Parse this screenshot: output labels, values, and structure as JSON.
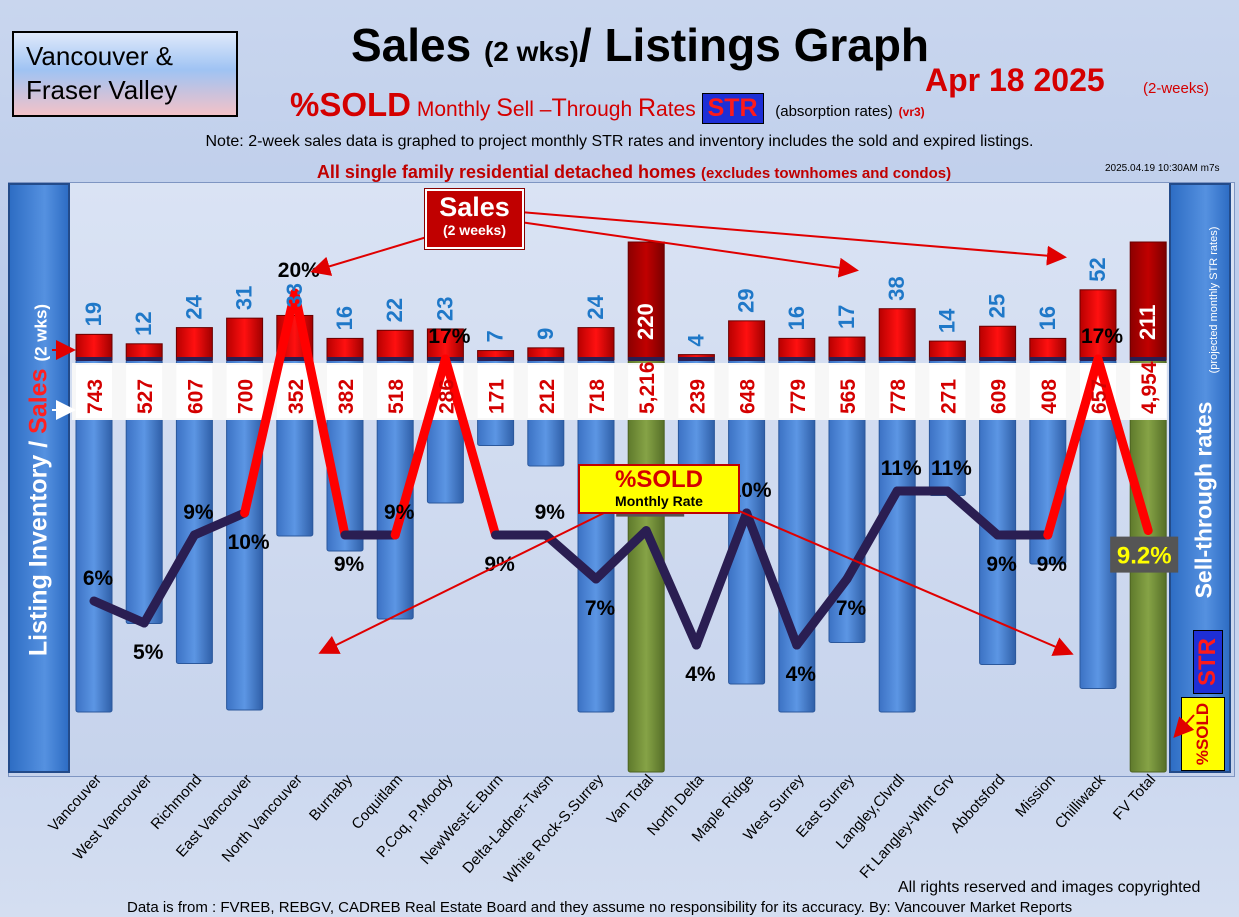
{
  "header": {
    "region": "Vancouver & Fraser Valley",
    "title_main": "Sales",
    "title_paren": "(2 wks)",
    "title_rest": "/ Listings Graph",
    "date": "Apr 18  2025",
    "date_suffix": "(2-weeks)",
    "subtitle_pct": "%SOLD",
    "subtitle_w1": "Monthly",
    "subtitle_S": "S",
    "subtitle_w2": "ell –",
    "subtitle_T": "T",
    "subtitle_w3": "hrough",
    "subtitle_R": "R",
    "subtitle_w4": "ates",
    "subtitle_str": "STR",
    "subtitle_tail": "(absorption rates)",
    "subtitle_ver": "(vr3)",
    "note": "Note: 2-week sales data is graphed to project monthly STR rates and inventory includes the sold and expired listings.",
    "stamp": "2025.04.19 10:30AM m7s",
    "detached": "All single family residential detached homes",
    "detached_paren": "(excludes townhomes and condos)"
  },
  "axes": {
    "left_a": "Listing Inventory /",
    "left_b": "Sales",
    "left_c": "(2  wks)",
    "right": "Sell-through rates",
    "right_sub": "(projected monthly STR rates)",
    "str_tag": "STR",
    "pct_sold_tag": "%SOLD"
  },
  "callouts": {
    "sales": "Sales",
    "sales_sub": "(2 weeks)",
    "sold": "%SOLD",
    "sold_sub": "Monthly Rate"
  },
  "footer": {
    "rights": "All rights reserved and  images copyrighted",
    "source": "Data is from : FVREB, REBGV, CADREB Real Estate Board and they assume no responsibility for its accuracy. By: Vancouver Market Reports"
  },
  "chart_data": {
    "type": "bar",
    "categories": [
      "Vancouver",
      "West Vancouver",
      "Richmond",
      "East Vancouver",
      "North Vancouver",
      "Burnaby",
      "Coquitlam",
      "P.Coq, P.Moody",
      "NewWest-E.Burn",
      "Delta-Ladner-Twsn",
      "White Rock-S.Surrey",
      "Van Total",
      "North Delta",
      "Maple Ridge",
      "West Surrey",
      "East Surrey",
      "Langley,Clvrdl",
      "Ft Langley-Wlnt Grv",
      "Abbotsford",
      "Mission",
      "Chilliwack",
      "FV Total"
    ],
    "series": [
      {
        "values": [
          19,
          12,
          24,
          31,
          33,
          16,
          22,
          23,
          7,
          9,
          24,
          220,
          4,
          29,
          16,
          17,
          38,
          14,
          25,
          16,
          52,
          211
        ]
      },
      {
        "values": [
          743,
          527,
          607,
          700,
          352,
          382,
          518,
          286,
          171,
          212,
          718,
          5216,
          239,
          648,
          779,
          565,
          778,
          271,
          609,
          408,
          657,
          4954
        ]
      },
      {
        "values": [
          6,
          5,
          9,
          10,
          20,
          9,
          9,
          17,
          9,
          9,
          7,
          9.2,
          4,
          10,
          4,
          7,
          11,
          11,
          9,
          9,
          17,
          9.2
        ]
      }
    ],
    "sales_labels": [
      "19",
      "12",
      "24",
      "31",
      "33",
      "16",
      "22",
      "23",
      "7",
      "9",
      "24",
      "220",
      "4",
      "29",
      "16",
      "17",
      "38",
      "14",
      "25",
      "16",
      "52",
      "211"
    ],
    "inventory_labels": [
      "743",
      "527",
      "607",
      "700",
      "352",
      "382",
      "518",
      "286",
      "171",
      "212",
      "718",
      "5,216",
      "239",
      "648",
      "779",
      "565",
      "778",
      "271",
      "609",
      "408",
      "657",
      "4,954"
    ],
    "pct_labels": [
      "6%",
      "5%",
      "9%",
      "10%",
      "20%",
      "9%",
      "9%",
      "17%",
      "9%",
      "9%",
      "7%",
      "9.2%",
      "4%",
      "10%",
      "4%",
      "7%",
      "11%",
      "11%",
      "9%",
      "9%",
      "17%",
      "9.2%"
    ],
    "total_indices": [
      11,
      21
    ],
    "colors": {
      "sales": "#ff0000",
      "inventory": "#4a86d8",
      "total": "#77933c",
      "line_low": "#2a1e52",
      "line_high": "#ff0000",
      "sales_label": "#1f78c8",
      "inv_label": "#d40000"
    }
  }
}
